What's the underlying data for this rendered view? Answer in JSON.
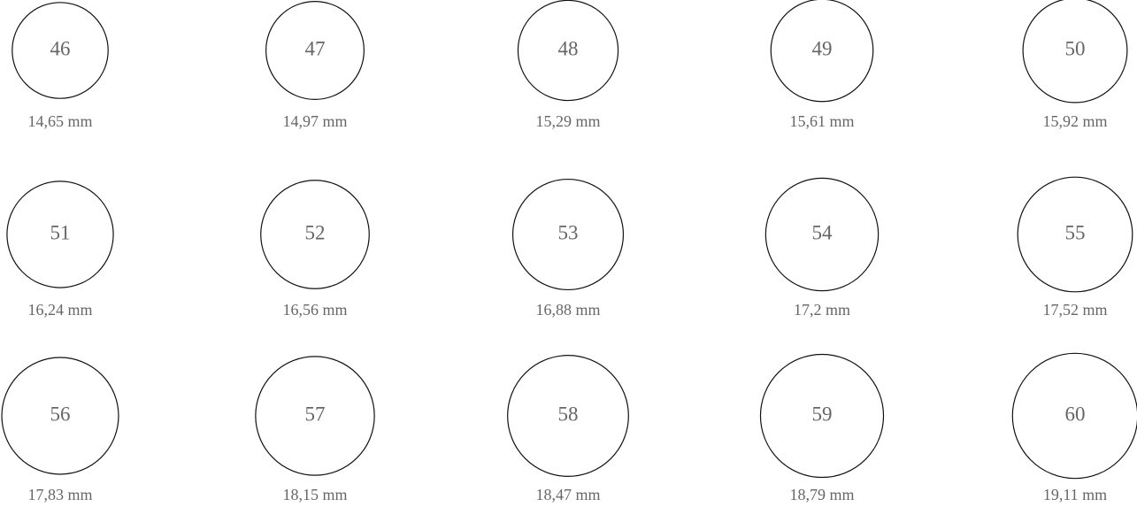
{
  "rings": [
    {
      "size": "46",
      "diameter": "14,65 mm"
    },
    {
      "size": "47",
      "diameter": "14,97 mm"
    },
    {
      "size": "48",
      "diameter": "15,29 mm"
    },
    {
      "size": "49",
      "diameter": "15,61 mm"
    },
    {
      "size": "50",
      "diameter": "15,92 mm"
    },
    {
      "size": "51",
      "diameter": "16,24 mm"
    },
    {
      "size": "52",
      "diameter": "16,56 mm"
    },
    {
      "size": "53",
      "diameter": "16,88 mm"
    },
    {
      "size": "54",
      "diameter": "17,2 mm"
    },
    {
      "size": "55",
      "diameter": "17,52 mm"
    },
    {
      "size": "56",
      "diameter": "17,83 mm"
    },
    {
      "size": "57",
      "diameter": "18,15 mm"
    },
    {
      "size": "58",
      "diameter": "18,47 mm"
    },
    {
      "size": "59",
      "diameter": "18,79 mm"
    },
    {
      "size": "60",
      "diameter": "19,11 mm"
    }
  ]
}
